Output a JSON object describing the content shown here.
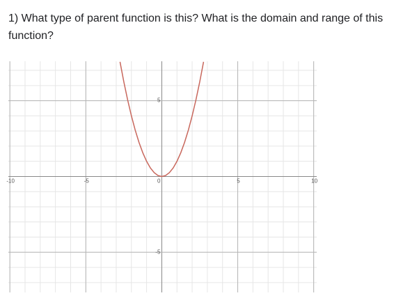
{
  "question": "1) What type of parent function is this? What is the domain and range of this function?",
  "chart_data": {
    "type": "line",
    "x": [
      -2.75,
      -2.5,
      -2.25,
      -2,
      -1.75,
      -1.5,
      -1.25,
      -1,
      -0.75,
      -0.5,
      -0.25,
      0,
      0.25,
      0.5,
      0.75,
      1,
      1.25,
      1.5,
      1.75,
      2,
      2.25,
      2.5,
      2.75
    ],
    "values": [
      7.5625,
      6.25,
      5.0625,
      4,
      3.0625,
      2.25,
      1.5625,
      1,
      0.5625,
      0.25,
      0.0625,
      0,
      0.0625,
      0.25,
      0.5625,
      1,
      1.5625,
      2.25,
      3.0625,
      4,
      5.0625,
      6.25,
      7.5625
    ],
    "color": "#c8675c",
    "xlim": [
      -10.1,
      10.2
    ],
    "ylim": [
      -7.65,
      7.6
    ],
    "xticks": [
      -10,
      -5,
      0,
      5,
      10
    ],
    "yticks": [
      -5,
      5
    ],
    "xgrid": [
      -10,
      -9,
      -8,
      -7,
      -6,
      -5,
      -4,
      -3,
      -2,
      -1,
      0,
      1,
      2,
      3,
      4,
      5,
      6,
      7,
      8,
      9,
      10
    ],
    "ygrid": [
      -7,
      -6,
      -5,
      -4,
      -3,
      -2,
      -1,
      0,
      1,
      2,
      3,
      4,
      5,
      6,
      7
    ]
  }
}
